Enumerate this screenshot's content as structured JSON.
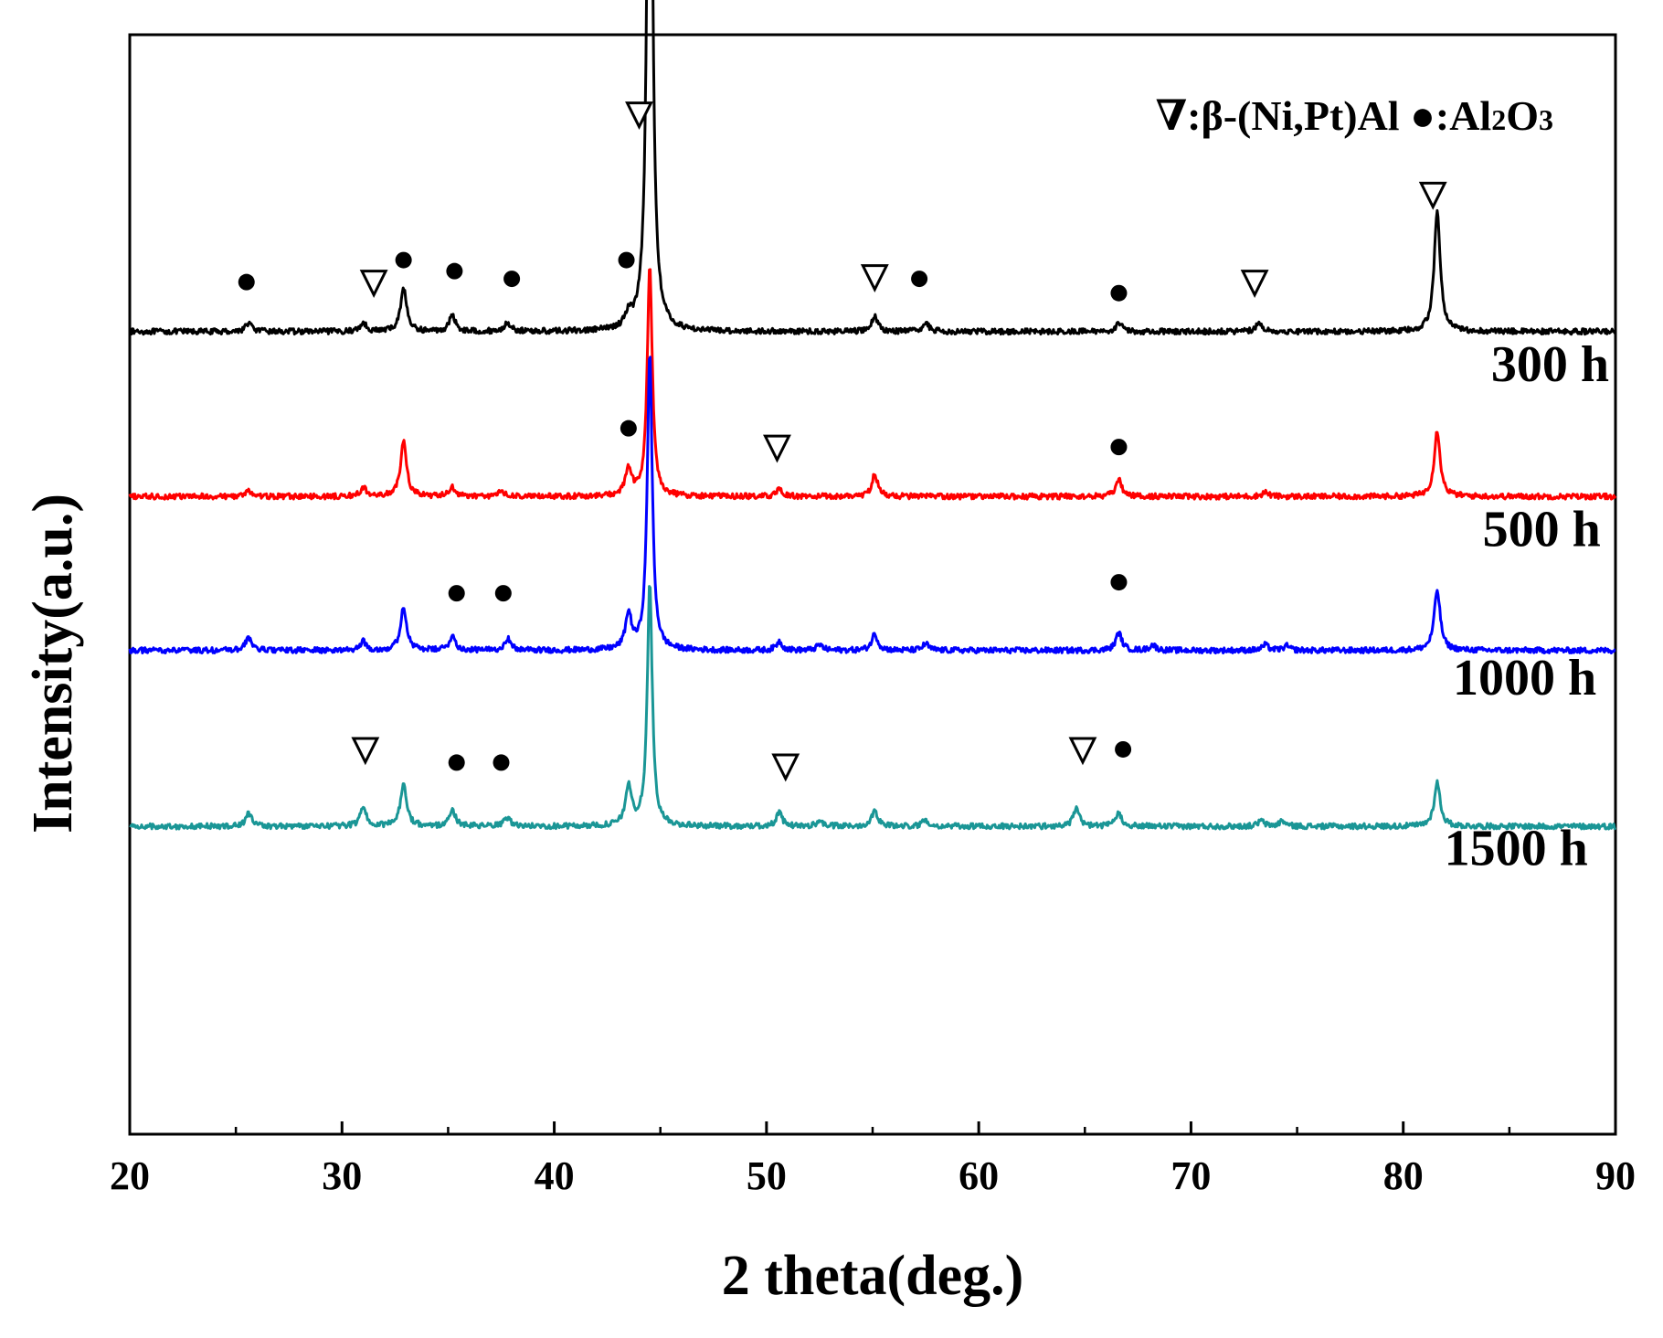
{
  "chart_data": {
    "type": "line",
    "title": "",
    "xlabel": "2 theta(deg.)",
    "ylabel": "Intensity(a.u.)",
    "xlim": [
      20,
      90
    ],
    "ylim": [
      0,
      100
    ],
    "xticks": [
      20,
      30,
      40,
      50,
      60,
      70,
      80,
      90
    ],
    "grid": false,
    "legend": {
      "position": "top-right",
      "beta_symbol": "∇",
      "beta_text": ":β-(Ni,Pt)Al",
      "alumina_symbol": "●",
      "alumina_text_main": ":Al",
      "alumina_sub1": "2",
      "alumina_mid": "O",
      "alumina_sub2": "3"
    },
    "series": [
      {
        "name": "300 h",
        "color": "#000000",
        "baseline": 73,
        "peaks": [
          [
            25.6,
            0.8
          ],
          [
            31.0,
            0.8
          ],
          [
            32.9,
            4.0
          ],
          [
            35.2,
            1.5
          ],
          [
            37.8,
            0.8
          ],
          [
            43.5,
            1.2
          ],
          [
            44.5,
            65.5
          ],
          [
            55.1,
            1.4
          ],
          [
            57.5,
            0.8
          ],
          [
            66.6,
            0.8
          ],
          [
            73.2,
            0.8
          ],
          [
            81.6,
            11.0
          ]
        ],
        "markers": [
          {
            "type": "beta",
            "x": 44.0,
            "y": 92.8
          },
          {
            "type": "alumina",
            "x": 25.5,
            "y": 77.5
          },
          {
            "type": "beta",
            "x": 31.5,
            "y": 77.5
          },
          {
            "type": "alumina",
            "x": 32.9,
            "y": 79.5
          },
          {
            "type": "alumina",
            "x": 35.3,
            "y": 78.5
          },
          {
            "type": "alumina",
            "x": 38.0,
            "y": 77.8
          },
          {
            "type": "alumina",
            "x": 43.4,
            "y": 79.5
          },
          {
            "type": "beta",
            "x": 55.1,
            "y": 78.0
          },
          {
            "type": "alumina",
            "x": 57.2,
            "y": 77.8
          },
          {
            "type": "alumina",
            "x": 66.6,
            "y": 76.5
          },
          {
            "type": "beta",
            "x": 73.0,
            "y": 77.5
          },
          {
            "type": "beta",
            "x": 81.4,
            "y": 85.5
          }
        ]
      },
      {
        "name": "500 h",
        "color": "#ff0000",
        "baseline": 58,
        "peaks": [
          [
            25.6,
            0.5
          ],
          [
            31.0,
            0.8
          ],
          [
            32.9,
            5.0
          ],
          [
            35.2,
            0.8
          ],
          [
            37.5,
            0.5
          ],
          [
            43.5,
            2.5
          ],
          [
            44.5,
            21.0
          ],
          [
            50.6,
            0.6
          ],
          [
            55.1,
            2.0
          ],
          [
            66.6,
            1.5
          ],
          [
            73.5,
            0.4
          ],
          [
            81.6,
            6.0
          ]
        ],
        "markers": [
          {
            "type": "alumina",
            "x": 43.5,
            "y": 64.2
          },
          {
            "type": "beta",
            "x": 50.5,
            "y": 62.5
          },
          {
            "type": "alumina",
            "x": 66.6,
            "y": 62.5
          }
        ]
      },
      {
        "name": "1000 h",
        "color": "#0000ff",
        "baseline": 44,
        "peaks": [
          [
            25.6,
            1.2
          ],
          [
            31.0,
            0.8
          ],
          [
            32.9,
            4.0
          ],
          [
            35.2,
            1.3
          ],
          [
            37.8,
            1.1
          ],
          [
            43.5,
            3.2
          ],
          [
            44.5,
            27.0
          ],
          [
            50.6,
            0.8
          ],
          [
            52.5,
            0.5
          ],
          [
            55.1,
            1.5
          ],
          [
            57.5,
            0.6
          ],
          [
            66.6,
            1.6
          ],
          [
            68.2,
            0.5
          ],
          [
            73.5,
            0.5
          ],
          [
            74.5,
            0.4
          ],
          [
            81.6,
            5.5
          ]
        ],
        "markers": [
          {
            "type": "alumina",
            "x": 35.4,
            "y": 49.2
          },
          {
            "type": "alumina",
            "x": 37.6,
            "y": 49.2
          },
          {
            "type": "alumina",
            "x": 66.6,
            "y": 50.2
          }
        ]
      },
      {
        "name": "1500 h",
        "color": "#1a9696",
        "baseline": 28,
        "peaks": [
          [
            25.6,
            1.2
          ],
          [
            31.0,
            1.8
          ],
          [
            32.9,
            4.0
          ],
          [
            35.2,
            1.5
          ],
          [
            37.8,
            0.8
          ],
          [
            43.5,
            3.6
          ],
          [
            44.5,
            22.0
          ],
          [
            50.6,
            1.2
          ],
          [
            52.5,
            0.5
          ],
          [
            55.1,
            1.5
          ],
          [
            57.5,
            0.6
          ],
          [
            64.6,
            1.6
          ],
          [
            66.6,
            1.2
          ],
          [
            73.3,
            0.5
          ],
          [
            74.3,
            0.5
          ],
          [
            81.6,
            4.0
          ]
        ],
        "markers": [
          {
            "type": "beta",
            "x": 31.1,
            "y": 35.0
          },
          {
            "type": "alumina",
            "x": 35.4,
            "y": 33.8
          },
          {
            "type": "alumina",
            "x": 37.5,
            "y": 33.8
          },
          {
            "type": "beta",
            "x": 50.9,
            "y": 33.5
          },
          {
            "type": "beta",
            "x": 64.9,
            "y": 35.0
          },
          {
            "type": "alumina",
            "x": 66.8,
            "y": 35.0
          }
        ]
      }
    ],
    "series_label_positions": [
      {
        "x": 89.7,
        "y": 68.5
      },
      {
        "x": 89.3,
        "y": 53.5
      },
      {
        "x": 89.1,
        "y": 40.0
      },
      {
        "x": 88.7,
        "y": 24.5
      }
    ]
  }
}
